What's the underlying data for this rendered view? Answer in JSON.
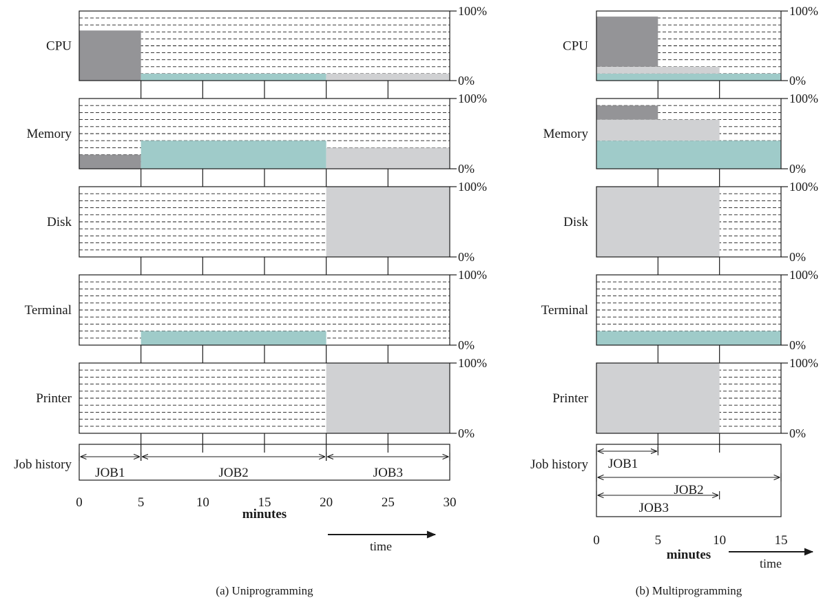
{
  "colors": {
    "job1": "#949497",
    "job2": "#9fcbc9",
    "job3": "#d0d1d3",
    "line": "#1a1a1a",
    "grid": "#1a1a1a"
  },
  "axis_labels": {
    "top": "100%",
    "bottom": "0%"
  },
  "chart_data": [
    {
      "type": "area",
      "caption": "(a) Uniprogramming",
      "xlim": [
        0,
        30
      ],
      "ylim": [
        0,
        100
      ],
      "x_ticks": [
        0,
        5,
        10,
        15,
        20,
        25,
        30
      ],
      "x_ticks_drawn": [
        5,
        10,
        15,
        20,
        25
      ],
      "xlabel": "minutes",
      "time_label": "time",
      "resources": [
        {
          "label": "CPU",
          "segments": [
            {
              "job": "job1",
              "x0": 0,
              "x1": 5,
              "y0": 0,
              "y1": 72
            },
            {
              "job": "job2",
              "x0": 5,
              "x1": 20,
              "y0": 0,
              "y1": 10
            },
            {
              "job": "job3",
              "x0": 20,
              "x1": 30,
              "y0": 0,
              "y1": 10
            }
          ]
        },
        {
          "label": "Memory",
          "segments": [
            {
              "job": "job1",
              "x0": 0,
              "x1": 5,
              "y0": 0,
              "y1": 20
            },
            {
              "job": "job2",
              "x0": 5,
              "x1": 20,
              "y0": 0,
              "y1": 40
            },
            {
              "job": "job3",
              "x0": 20,
              "x1": 30,
              "y0": 0,
              "y1": 30
            }
          ]
        },
        {
          "label": "Disk",
          "segments": [
            {
              "job": "job3",
              "x0": 20,
              "x1": 30,
              "y0": 0,
              "y1": 100
            }
          ]
        },
        {
          "label": "Terminal",
          "segments": [
            {
              "job": "job2",
              "x0": 5,
              "x1": 20,
              "y0": 0,
              "y1": 20
            }
          ]
        },
        {
          "label": "Printer",
          "segments": [
            {
              "job": "job3",
              "x0": 20,
              "x1": 30,
              "y0": 0,
              "y1": 100
            }
          ]
        }
      ],
      "job_history": {
        "label": "Job history",
        "jobs": [
          {
            "name": "JOB1",
            "x0": 0,
            "x1": 5,
            "row": 0
          },
          {
            "name": "JOB2",
            "x0": 5,
            "x1": 20,
            "row": 0
          },
          {
            "name": "JOB3",
            "x0": 20,
            "x1": 30,
            "row": 0
          }
        ]
      }
    },
    {
      "type": "area",
      "caption": "(b) Multiprogramming",
      "xlim": [
        0,
        15
      ],
      "ylim": [
        0,
        100
      ],
      "x_ticks": [
        0,
        5,
        10,
        15
      ],
      "x_ticks_drawn": [
        5,
        10
      ],
      "xlabel": "minutes",
      "time_label": "time",
      "resources": [
        {
          "label": "CPU",
          "segments": [
            {
              "job": "job2",
              "x0": 0,
              "x1": 15,
              "y0": 0,
              "y1": 10
            },
            {
              "job": "job3",
              "x0": 0,
              "x1": 10,
              "y0": 10,
              "y1": 20
            },
            {
              "job": "job1",
              "x0": 0,
              "x1": 5,
              "y0": 20,
              "y1": 92
            }
          ]
        },
        {
          "label": "Memory",
          "segments": [
            {
              "job": "job2",
              "x0": 0,
              "x1": 15,
              "y0": 0,
              "y1": 40
            },
            {
              "job": "job3",
              "x0": 0,
              "x1": 10,
              "y0": 40,
              "y1": 70
            },
            {
              "job": "job1",
              "x0": 0,
              "x1": 5,
              "y0": 70,
              "y1": 90
            }
          ]
        },
        {
          "label": "Disk",
          "segments": [
            {
              "job": "job3",
              "x0": 0,
              "x1": 10,
              "y0": 0,
              "y1": 100
            }
          ]
        },
        {
          "label": "Terminal",
          "segments": [
            {
              "job": "job2",
              "x0": 0,
              "x1": 15,
              "y0": 0,
              "y1": 20
            }
          ]
        },
        {
          "label": "Printer",
          "segments": [
            {
              "job": "job3",
              "x0": 0,
              "x1": 10,
              "y0": 0,
              "y1": 100
            }
          ]
        }
      ],
      "job_history": {
        "label": "Job history",
        "jobs": [
          {
            "name": "JOB1",
            "x0": 0,
            "x1": 5,
            "row": 0
          },
          {
            "name": "JOB2",
            "x0": 0,
            "x1": 15,
            "row": 1
          },
          {
            "name": "JOB3",
            "x0": 0,
            "x1": 10,
            "row": 2
          }
        ]
      }
    }
  ]
}
